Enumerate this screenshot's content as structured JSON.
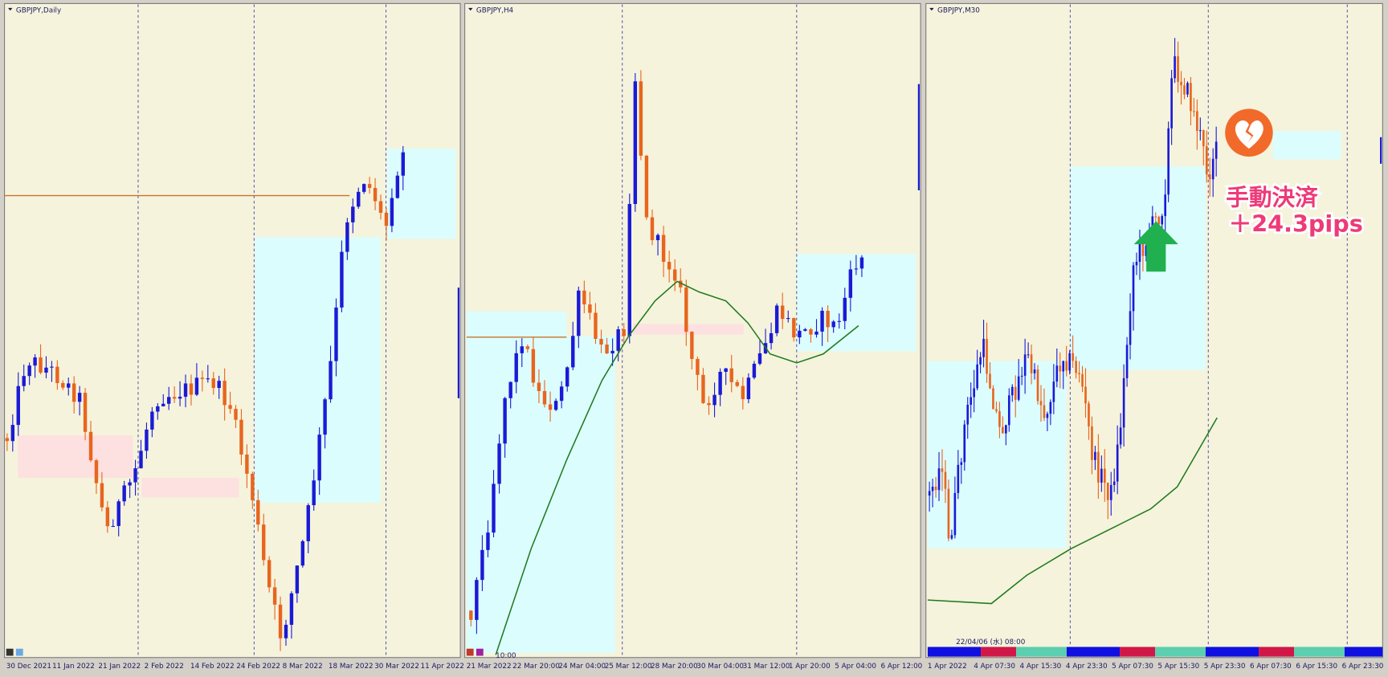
{
  "panels": [
    {
      "title": "GBPJPY,Daily",
      "x_labels": [
        "30 Dec 2021",
        "11 Jan 2022",
        "21 Jan 2022",
        "2 Feb 2022",
        "14 Feb 2022",
        "24 Feb 2022",
        "8 Mar 2022",
        "18 Mar 2022",
        "30 Mar 2022",
        "11 Apr 2022"
      ]
    },
    {
      "title": "GBPJPY,H4",
      "x_labels": [
        "21 Mar 2022",
        "22 Mar 20:00",
        "24 Mar 04:00",
        "25 Mar 12:00",
        "28 Mar 20:00",
        "30 Mar 04:00",
        "31 Mar 12:00",
        "1 Apr 20:00",
        "5 Apr 04:00",
        "6 Apr 12:00"
      ],
      "time_label": "10:00"
    },
    {
      "title": "GBPJPY,M30",
      "x_labels": [
        "1 Apr 2022",
        "4 Apr 07:30",
        "4 Apr 15:30",
        "4 Apr 23:30",
        "5 Apr 07:30",
        "5 Apr 15:30",
        "5 Apr 23:30",
        "6 Apr 07:30",
        "6 Apr 15:30",
        "6 Apr 23:30"
      ],
      "time_label": "22/04/06 (水) 08:00"
    }
  ],
  "annotation": {
    "line1": "手動決済",
    "line2": "＋24.3pips"
  }
}
